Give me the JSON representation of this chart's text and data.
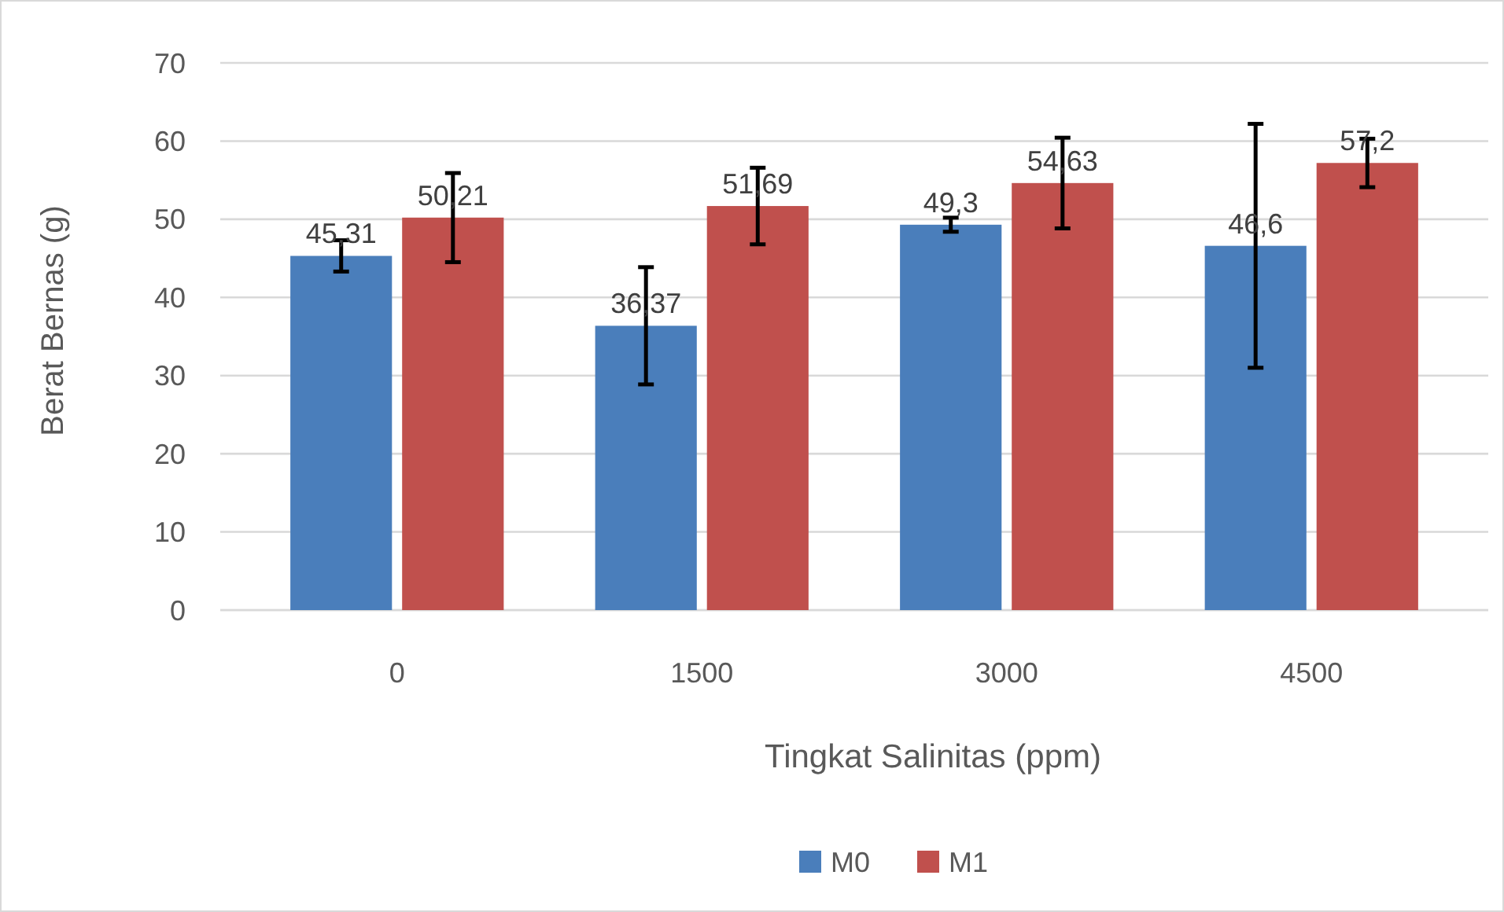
{
  "chart_data": {
    "type": "bar",
    "xlabel": "Tingkat Salinitas (ppm)",
    "ylabel": "Berat Bernas (g)",
    "categories": [
      "0",
      "1500",
      "3000",
      "4500"
    ],
    "series": [
      {
        "name": "M0",
        "color": "#4a7ebb",
        "values": [
          45.31,
          36.37,
          49.3,
          46.6
        ],
        "errors": [
          2,
          7.5,
          0.9,
          15.6
        ],
        "value_labels": [
          "45,31",
          "36,37",
          "49,3",
          "46,6"
        ]
      },
      {
        "name": "M1",
        "color": "#c0504d",
        "values": [
          50.21,
          51.69,
          54.63,
          57.2
        ],
        "errors": [
          5.7,
          4.9,
          5.8,
          3.1
        ],
        "value_labels": [
          "50,21",
          "51,69",
          "54,63",
          "57,2"
        ]
      }
    ],
    "ylim": [
      0,
      70
    ],
    "yticks": [
      0,
      10,
      20,
      30,
      40,
      50,
      60,
      70
    ],
    "grid": "y",
    "legend": "bottom"
  }
}
